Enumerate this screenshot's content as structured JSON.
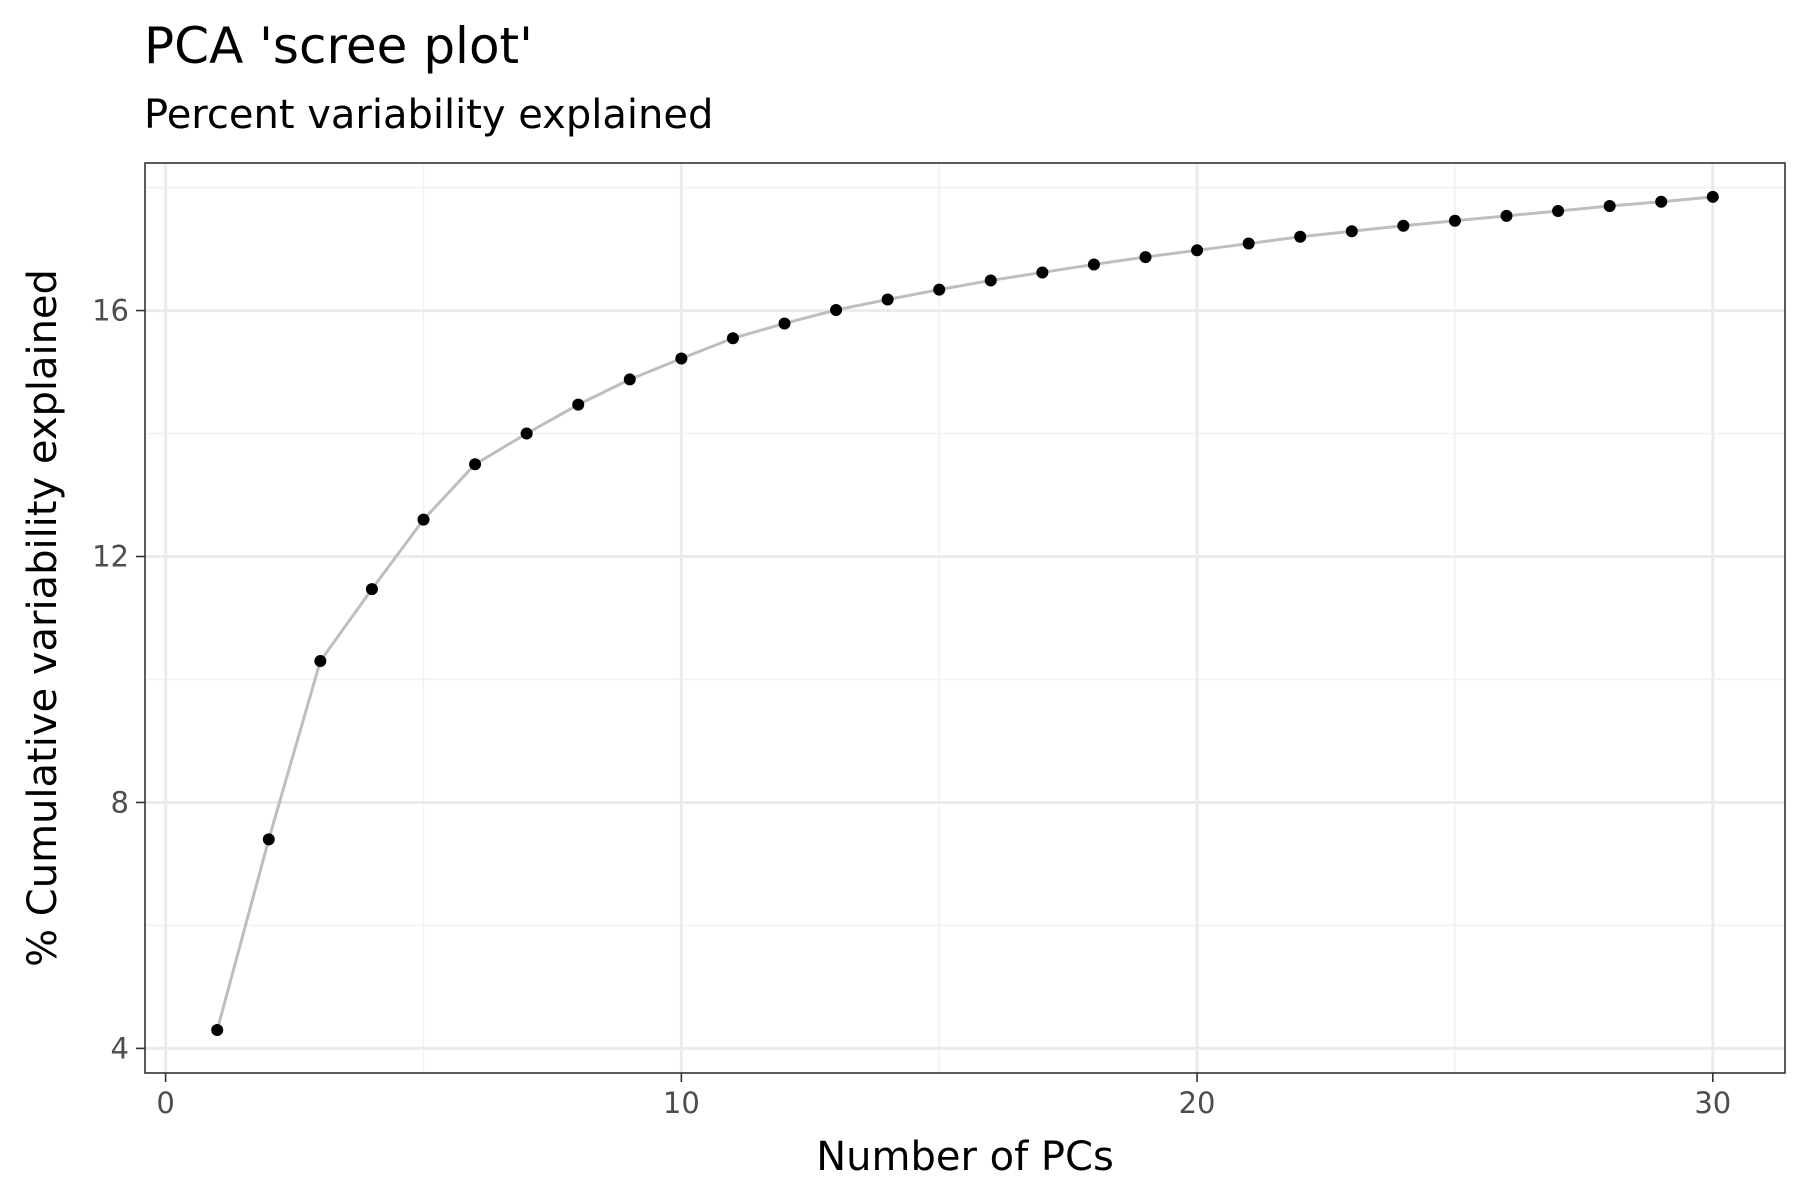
{
  "chart_data": {
    "type": "line",
    "title": "PCA 'scree plot'",
    "subtitle": "Percent variability explained",
    "xlabel": "Number of PCs",
    "ylabel": "% Cumulative variability explained",
    "xlim": [
      -0.4,
      31.4
    ],
    "ylim": [
      3.6,
      18.4
    ],
    "x_ticks": [
      0,
      10,
      20,
      30
    ],
    "y_ticks": [
      4,
      8,
      12,
      16
    ],
    "x_minor_ticks": [
      5,
      15,
      25
    ],
    "y_minor_ticks": [
      6,
      10,
      14,
      18
    ],
    "grid": true,
    "series": [
      {
        "x": [
          1,
          2,
          3,
          4,
          5,
          6,
          7,
          8,
          9,
          10,
          11,
          12,
          13,
          14,
          15,
          16,
          17,
          18,
          19,
          20,
          21,
          22,
          23,
          24,
          25,
          26,
          27,
          28,
          29,
          30
        ],
        "y": [
          4.3,
          7.4,
          10.3,
          11.47,
          12.6,
          13.5,
          14.0,
          14.47,
          14.88,
          15.22,
          15.55,
          15.79,
          16.01,
          16.18,
          16.34,
          16.49,
          16.62,
          16.75,
          16.87,
          16.98,
          17.09,
          17.2,
          17.29,
          17.38,
          17.46,
          17.54,
          17.62,
          17.7,
          17.77,
          17.85
        ]
      }
    ],
    "colors": {
      "line": "#bebebe",
      "point": "#000000",
      "grid_major": "#ebebeb",
      "grid_minor": "#f2f2f2",
      "panel_border": "#333333",
      "tick_label": "#4d4d4d"
    }
  }
}
